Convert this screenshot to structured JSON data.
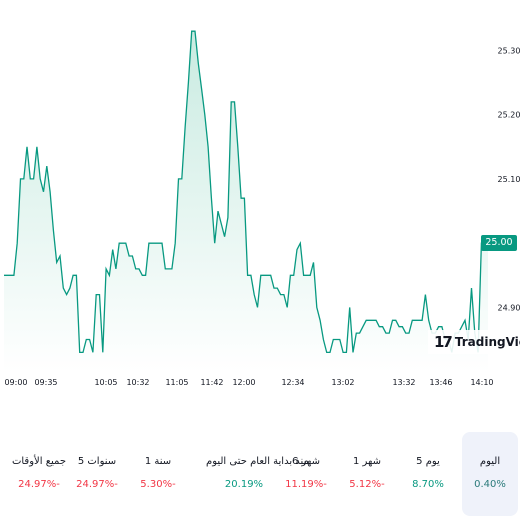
{
  "chart_data": {
    "type": "area",
    "ylim": [
      24.815,
      25.335
    ],
    "y_ticks": [
      "25.30",
      "25.20",
      "25.10",
      "25.00",
      "24.90"
    ],
    "x_ticks": [
      "09:00",
      "09:35",
      "10:05",
      "10:32",
      "11:05",
      "11:42",
      "12:00",
      "12:34",
      "13:02",
      "13:32",
      "13:46",
      "14:10"
    ],
    "values": [
      24.95,
      24.95,
      24.95,
      24.95,
      25.0,
      25.1,
      25.1,
      25.15,
      25.1,
      25.1,
      25.15,
      25.1,
      25.08,
      25.12,
      25.08,
      25.02,
      24.97,
      24.98,
      24.93,
      24.92,
      24.93,
      24.95,
      24.95,
      24.83,
      24.83,
      24.85,
      24.85,
      24.83,
      24.92,
      24.92,
      24.83,
      24.96,
      24.95,
      24.99,
      24.96,
      25.0,
      25.0,
      25.0,
      24.98,
      24.98,
      24.96,
      24.96,
      24.95,
      24.95,
      25.0,
      25.0,
      25.0,
      25.0,
      25.0,
      24.96,
      24.96,
      24.96,
      25.0,
      25.1,
      25.1,
      25.18,
      25.25,
      25.33,
      25.33,
      25.28,
      25.24,
      25.2,
      25.15,
      25.07,
      25.0,
      25.05,
      25.03,
      25.01,
      25.04,
      25.22,
      25.22,
      25.15,
      25.07,
      25.07,
      24.95,
      24.95,
      24.92,
      24.9,
      24.95,
      24.95,
      24.95,
      24.95,
      24.93,
      24.93,
      24.92,
      24.92,
      24.9,
      24.95,
      24.95,
      24.99,
      25.0,
      24.95,
      24.95,
      24.95,
      24.97,
      24.9,
      24.88,
      24.85,
      24.83,
      24.83,
      24.85,
      24.85,
      24.85,
      24.83,
      24.83,
      24.9,
      24.83,
      24.86,
      24.86,
      24.87,
      24.88,
      24.88,
      24.88,
      24.88,
      24.87,
      24.87,
      24.86,
      24.86,
      24.88,
      24.88,
      24.87,
      24.87,
      24.86,
      24.86,
      24.88,
      24.88,
      24.88,
      24.88,
      24.92,
      24.88,
      24.86,
      24.86,
      24.87,
      24.87,
      24.85,
      24.85,
      24.83,
      24.86,
      24.86,
      24.87,
      24.88,
      24.85,
      24.93,
      24.86,
      24.83,
      25.0,
      25.0,
      25.0
    ],
    "last_value": "25.00",
    "highlight_value": "25.30"
  },
  "colors": {
    "line": "#089981",
    "fill_top": "#c9ebe1",
    "fill_bottom": "#ffffff",
    "axis_text": "#131722",
    "positive": "#089981",
    "negative": "#f23645",
    "neutral": "#2a7a7a",
    "price_tag": "#089981"
  },
  "brand": {
    "logo_mark": "17",
    "logo_text": "TradingView",
    "logo_icon": "tradingview-logo-icon"
  },
  "periods": [
    {
      "label": "اليوم",
      "value": "0.40%",
      "sign": "neutral",
      "active": true
    },
    {
      "label": "5 يوم",
      "value": "8.70%",
      "sign": "positive",
      "active": false
    },
    {
      "label": "1 شهر",
      "value": "5.12%-",
      "sign": "negative",
      "active": false
    },
    {
      "label": "6 شهر",
      "value": "11.19%-",
      "sign": "negative",
      "active": false
    },
    {
      "label": "منذ بداية العام حتى اليوم",
      "value": "20.19%",
      "sign": "positive",
      "active": false
    },
    {
      "label": "1 سنة",
      "value": "5.30%-",
      "sign": "negative",
      "active": false
    },
    {
      "label": "5 سنوات",
      "value": "24.97%-",
      "sign": "negative",
      "active": false
    },
    {
      "label": "جميع الأوقات",
      "value": "24.97%-",
      "sign": "negative",
      "active": false
    }
  ]
}
